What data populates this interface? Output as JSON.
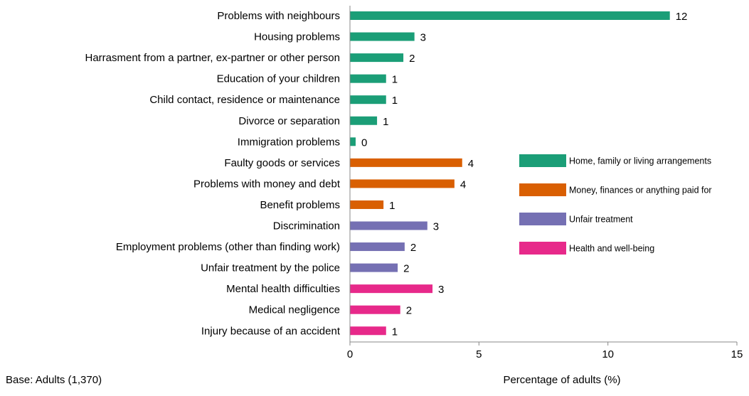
{
  "chart_data": {
    "type": "bar",
    "orientation": "horizontal",
    "xlabel": "Percentage of adults (%)",
    "note": "Base: Adults (1,370)",
    "xlim": [
      0,
      15
    ],
    "xticks": [
      0,
      5,
      10,
      15
    ],
    "grid": false,
    "legend_position": "right",
    "groups": [
      {
        "name": "Home, family or living arrangements",
        "color": "#1b9e77"
      },
      {
        "name": "Money, finances or anything paid for",
        "color": "#d95f02"
      },
      {
        "name": "Unfair treatment",
        "color": "#7570b3"
      },
      {
        "name": "Health and well-being",
        "color": "#e7298a"
      }
    ],
    "bars": [
      {
        "category": "Problems with neighbours",
        "value": 12.4,
        "label": "12",
        "group": 0
      },
      {
        "category": "Housing problems",
        "value": 2.5,
        "label": "3",
        "group": 0
      },
      {
        "category": "Harrasment from a partner, ex-partner or other person",
        "value": 2.07,
        "label": "2",
        "group": 0
      },
      {
        "category": "Education of your children",
        "value": 1.4,
        "label": "1",
        "group": 0
      },
      {
        "category": "Child contact, residence or maintenance",
        "value": 1.4,
        "label": "1",
        "group": 0
      },
      {
        "category": "Divorce or separation",
        "value": 1.05,
        "label": "1",
        "group": 0
      },
      {
        "category": "Immigration problems",
        "value": 0.22,
        "label": "0",
        "group": 0
      },
      {
        "category": "Faulty goods or services",
        "value": 4.35,
        "label": "4",
        "group": 1
      },
      {
        "category": "Problems with money and debt",
        "value": 4.05,
        "label": "4",
        "group": 1
      },
      {
        "category": "Benefit problems",
        "value": 1.3,
        "label": "1",
        "group": 1
      },
      {
        "category": "Discrimination",
        "value": 3.0,
        "label": "3",
        "group": 2
      },
      {
        "category": "Employment problems (other than finding work)",
        "value": 2.12,
        "label": "2",
        "group": 2
      },
      {
        "category": "Unfair treatment by the police",
        "value": 1.85,
        "label": "2",
        "group": 2
      },
      {
        "category": "Mental health difficulties",
        "value": 3.2,
        "label": "3",
        "group": 3
      },
      {
        "category": "Medical negligence",
        "value": 1.95,
        "label": "2",
        "group": 3
      },
      {
        "category": "Injury because of an accident",
        "value": 1.4,
        "label": "1",
        "group": 3
      }
    ]
  }
}
